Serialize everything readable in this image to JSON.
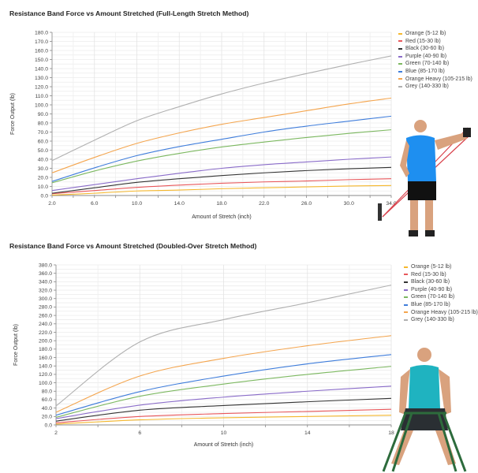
{
  "chart_data": [
    {
      "type": "line",
      "title": "Resistance Band Force vs Amount Stretched  (Full-Length Stretch Method)",
      "xlabel": "Amount of Stretch (inch)",
      "ylabel": "Force Output (lb)",
      "xlim": [
        2,
        34
      ],
      "ylim": [
        0,
        180
      ],
      "x": [
        2,
        6,
        10,
        14,
        18,
        22,
        26,
        30,
        34
      ],
      "x_tick_labels": [
        "2.0",
        "6.0",
        "10.0",
        "14.0",
        "18.0",
        "22.0",
        "26.0",
        "30.0",
        "34.0"
      ],
      "y_tick_step": 10,
      "y_tick_decimals": 1,
      "grid": true,
      "legend_position": "right",
      "series": [
        {
          "name": "Orange (5-12 lb)",
          "color": "#f5b82e",
          "values": [
            0.5,
            2.5,
            5,
            6,
            7.5,
            8.5,
            9.5,
            10.5,
            11
          ]
        },
        {
          "name": "Red (15-30 lb)",
          "color": "#e8575b",
          "values": [
            2,
            5.5,
            9,
            11.5,
            13.5,
            15,
            16,
            17.5,
            18.5
          ]
        },
        {
          "name": "Black (30-60 lb)",
          "color": "#333333",
          "values": [
            2.5,
            8.5,
            14.5,
            18.5,
            22,
            25,
            27.5,
            29.5,
            31
          ]
        },
        {
          "name": "Purple (40-90 lb)",
          "color": "#8a6cc9",
          "values": [
            5.5,
            12,
            18.5,
            24.5,
            30,
            34,
            37,
            40,
            42.5
          ]
        },
        {
          "name": "Green (70-140 lb)",
          "color": "#7cb860",
          "values": [
            14,
            27,
            38,
            46.5,
            53.5,
            59,
            64,
            68.5,
            72.5
          ]
        },
        {
          "name": "Blue (85-170 lb)",
          "color": "#3f7ddb",
          "values": [
            15.5,
            30.5,
            44,
            54,
            62,
            70,
            76.5,
            82,
            87.5
          ]
        },
        {
          "name": "Orange Heavy (105-215 lb)",
          "color": "#f4a54e",
          "values": [
            25,
            42,
            57.5,
            69,
            78.5,
            86,
            93.5,
            101,
            107.5
          ]
        },
        {
          "name": "Grey (140-330 lb)",
          "color": "#b0b0b0",
          "values": [
            38.5,
            61,
            82.5,
            98,
            112,
            124,
            134.5,
            144.5,
            154
          ]
        }
      ]
    },
    {
      "type": "line",
      "title": "Resistance Band Force vs Amount Stretched  (Doubled-Over Stretch Method)",
      "xlabel": "Amount of Stretch (inch)",
      "ylabel": "Force Output (lb)",
      "xlim": [
        2,
        18
      ],
      "ylim": [
        0,
        380
      ],
      "x": [
        2,
        6,
        10,
        14,
        18
      ],
      "x_tick_labels": [
        "2",
        "6",
        "10",
        "14",
        "18"
      ],
      "y_tick_step": 20,
      "y_tick_decimals": 1,
      "grid": true,
      "legend_position": "right",
      "series": [
        {
          "name": "Orange (5-12 lb)",
          "color": "#f5b82e",
          "values": [
            2,
            12,
            17,
            20,
            23
          ]
        },
        {
          "name": "Red (15-30 lb)",
          "color": "#e8575b",
          "values": [
            5,
            20,
            27,
            32,
            37
          ]
        },
        {
          "name": "Black (30-60 lb)",
          "color": "#333333",
          "values": [
            9,
            35,
            46,
            55,
            63
          ]
        },
        {
          "name": "Purple (40-90 lb)",
          "color": "#8a6cc9",
          "values": [
            15,
            47,
            66,
            80,
            92
          ]
        },
        {
          "name": "Green (70-140 lb)",
          "color": "#7cb860",
          "values": [
            18,
            68,
            97,
            120,
            139
          ]
        },
        {
          "name": "Blue (85-170 lb)",
          "color": "#3f7ddb",
          "values": [
            23,
            79,
            116,
            145,
            167
          ]
        },
        {
          "name": "Orange Heavy (105-215 lb)",
          "color": "#f4a54e",
          "values": [
            30,
            116,
            158,
            188,
            212
          ]
        },
        {
          "name": "Grey (140-330 lb)",
          "color": "#b0b0b0",
          "values": [
            45,
            197,
            250,
            290,
            332
          ]
        }
      ]
    }
  ]
}
